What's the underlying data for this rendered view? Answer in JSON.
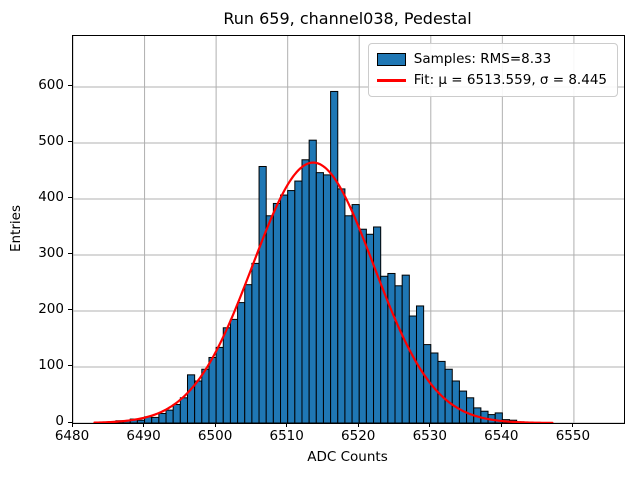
{
  "figure": {
    "title": "Run 659, channel038, Pedestal",
    "xlabel": "ADC Counts",
    "ylabel": "Entries"
  },
  "legend": {
    "samples_label": "Samples: RMS=8.33",
    "fit_label": "Fit: μ = 6513.559, σ = 8.445",
    "position": "upper right"
  },
  "colors": {
    "bar_fill": "#1f77b4",
    "bar_edge": "#000000",
    "fit_line": "#ff0000",
    "grid": "#b0b0b0",
    "background": "#ffffff",
    "spine": "#000000"
  },
  "chart_data": {
    "type": "bar",
    "subtype": "histogram",
    "title": "Run 659, channel038, Pedestal",
    "xlabel": "ADC Counts",
    "ylabel": "Entries",
    "grid": true,
    "legend_position": "upper right",
    "xlim": [
      6480,
      6557
    ],
    "ylim": [
      0,
      691
    ],
    "xticks": [
      6480,
      6490,
      6500,
      6510,
      6520,
      6530,
      6540,
      6550
    ],
    "yticks": [
      0,
      100,
      200,
      300,
      400,
      500,
      600
    ],
    "bin_start": 6483,
    "bin_width": 1,
    "counts": [
      1,
      1,
      2,
      4,
      4,
      7,
      5,
      11,
      10,
      17,
      23,
      33,
      45,
      86,
      75,
      96,
      117,
      135,
      170,
      185,
      215,
      247,
      285,
      458,
      370,
      392,
      407,
      415,
      432,
      470,
      505,
      447,
      443,
      592,
      418,
      370,
      390,
      346,
      337,
      350,
      262,
      267,
      245,
      264,
      191,
      209,
      140,
      125,
      110,
      96,
      75,
      57,
      45,
      27,
      21,
      15,
      18,
      6,
      5,
      2
    ],
    "series": [
      {
        "name": "Samples: RMS=8.33",
        "type": "histogram",
        "rms": 8.33
      },
      {
        "name": "Fit: μ = 6513.559, σ = 8.445",
        "type": "gaussian-curve",
        "mu": 6513.559,
        "sigma": 8.445,
        "amplitude": 465,
        "x_range": [
          6483,
          6547
        ]
      }
    ]
  }
}
